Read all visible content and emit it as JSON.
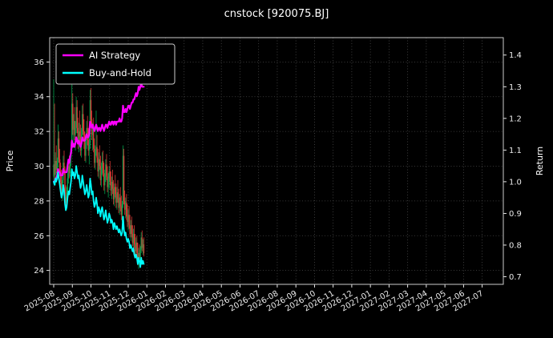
{
  "chart_data": {
    "type": "candlestick+line",
    "title": "cnstock [920075.BJ]",
    "ylabel_left": "Price",
    "ylabel_right": "Return",
    "x_tick_labels": [
      "2025-08",
      "2025-09",
      "2025-10",
      "2025-11",
      "2025-12",
      "2026-01",
      "2026-02",
      "2026-03",
      "2026-04",
      "2026-05",
      "2026-06",
      "2026-07",
      "2026-08",
      "2026-09",
      "2026-10",
      "2026-11",
      "2026-12",
      "2027-01",
      "2027-02",
      "2027-03",
      "2027-04",
      "2027-05",
      "2027-06",
      "2027-07"
    ],
    "x_tick_rotation_deg": 30,
    "left_axis": {
      "label": "Price",
      "ticks": [
        24,
        26,
        28,
        30,
        32,
        34,
        36
      ],
      "range": [
        23.2,
        37.4
      ]
    },
    "right_axis": {
      "label": "Return",
      "ticks": [
        0.7,
        0.8,
        0.9,
        1.0,
        1.1,
        1.2,
        1.3,
        1.4
      ],
      "range": [
        0.676,
        1.455
      ]
    },
    "grid": "dotted",
    "data_start_month": "2025-08",
    "data_end_month": "2026-01",
    "trading_days_per_month": 21.5,
    "legend": {
      "position": "upper-left",
      "items": [
        {
          "label": "AI Strategy",
          "color": "#ff00ff"
        },
        {
          "label": "Buy-and-Hold",
          "color": "#00ffff"
        }
      ]
    },
    "colors": {
      "background": "#000000",
      "text": "#ffffff",
      "grid": "#4a4a4a",
      "spine": "#cccccc",
      "candle_up": "#00a14b",
      "candle_down": "#d93a35"
    },
    "candles_ohlc": [
      [
        29.4,
        35.0,
        29.0,
        30.1
      ],
      [
        30.1,
        33.6,
        29.3,
        29.5
      ],
      [
        29.5,
        30.8,
        28.9,
        30.3
      ],
      [
        30.3,
        31.2,
        29.6,
        29.8
      ],
      [
        29.8,
        30.5,
        29.2,
        30.2
      ],
      [
        30.2,
        32.4,
        29.9,
        31.6
      ],
      [
        31.6,
        32.0,
        30.2,
        30.4
      ],
      [
        30.4,
        31.0,
        29.4,
        29.6
      ],
      [
        29.6,
        30.2,
        28.8,
        29.1
      ],
      [
        29.1,
        29.8,
        28.3,
        28.6
      ],
      [
        28.6,
        29.4,
        28.0,
        29.2
      ],
      [
        29.2,
        30.6,
        29.0,
        30.2
      ],
      [
        30.2,
        30.9,
        29.5,
        29.8
      ],
      [
        29.8,
        30.0,
        27.9,
        28.2
      ],
      [
        28.2,
        28.9,
        27.6,
        27.9
      ],
      [
        27.9,
        28.8,
        27.5,
        28.5
      ],
      [
        28.5,
        29.6,
        28.2,
        29.3
      ],
      [
        29.3,
        30.4,
        29.0,
        30.0
      ],
      [
        30.0,
        30.6,
        29.3,
        29.6
      ],
      [
        29.6,
        30.8,
        29.4,
        30.5
      ],
      [
        30.5,
        31.4,
        30.0,
        31.0
      ],
      [
        31.0,
        34.7,
        30.8,
        33.6
      ],
      [
        33.6,
        34.2,
        31.8,
        32.1
      ],
      [
        32.1,
        33.0,
        31.2,
        32.6
      ],
      [
        32.6,
        33.4,
        31.5,
        31.8
      ],
      [
        31.8,
        32.6,
        30.9,
        32.2
      ],
      [
        32.2,
        34.0,
        31.9,
        33.4
      ],
      [
        33.4,
        33.8,
        31.9,
        32.2
      ],
      [
        32.2,
        32.8,
        31.0,
        31.3
      ],
      [
        31.3,
        32.5,
        30.8,
        32.0
      ],
      [
        32.0,
        33.2,
        31.4,
        31.7
      ],
      [
        31.7,
        32.4,
        30.6,
        30.9
      ],
      [
        30.9,
        32.2,
        30.5,
        31.8
      ],
      [
        31.8,
        33.5,
        31.5,
        33.0
      ],
      [
        33.0,
        33.6,
        31.8,
        32.0
      ],
      [
        32.0,
        32.7,
        31.0,
        31.4
      ],
      [
        31.4,
        32.0,
        30.3,
        30.6
      ],
      [
        30.6,
        31.8,
        30.2,
        31.5
      ],
      [
        31.5,
        32.6,
        31.0,
        32.2
      ],
      [
        32.2,
        32.9,
        31.2,
        31.5
      ],
      [
        31.5,
        32.2,
        30.6,
        30.9
      ],
      [
        30.9,
        31.6,
        30.1,
        31.2
      ],
      [
        31.2,
        34.4,
        31.0,
        33.8
      ],
      [
        33.8,
        34.5,
        32.4,
        32.7
      ],
      [
        32.7,
        33.2,
        31.5,
        31.8
      ],
      [
        31.8,
        32.5,
        30.9,
        32.1
      ],
      [
        32.1,
        32.8,
        30.8,
        31.0
      ],
      [
        31.0,
        31.6,
        29.9,
        30.2
      ],
      [
        30.2,
        31.2,
        29.8,
        30.9
      ],
      [
        30.9,
        33.2,
        30.6,
        31.1
      ],
      [
        31.1,
        31.8,
        30.2,
        30.5
      ],
      [
        30.5,
        31.0,
        29.4,
        29.7
      ],
      [
        29.7,
        30.8,
        29.3,
        30.4
      ],
      [
        30.4,
        31.2,
        29.8,
        30.0
      ],
      [
        30.0,
        30.6,
        28.9,
        29.2
      ],
      [
        29.2,
        30.2,
        28.8,
        29.9
      ],
      [
        29.9,
        30.8,
        29.5,
        30.3
      ],
      [
        30.3,
        30.9,
        29.4,
        29.6
      ],
      [
        29.6,
        30.2,
        28.6,
        28.9
      ],
      [
        28.9,
        29.8,
        28.4,
        29.5
      ],
      [
        29.5,
        30.4,
        29.1,
        30.1
      ],
      [
        30.1,
        30.7,
        29.2,
        29.4
      ],
      [
        29.4,
        30.0,
        28.5,
        28.8
      ],
      [
        28.8,
        29.6,
        28.2,
        29.3
      ],
      [
        29.3,
        30.0,
        28.7,
        29.7
      ],
      [
        29.7,
        30.3,
        28.9,
        29.1
      ],
      [
        29.1,
        29.7,
        28.3,
        28.6
      ],
      [
        28.6,
        29.4,
        28.1,
        29.1
      ],
      [
        29.1,
        29.8,
        28.4,
        28.7
      ],
      [
        28.7,
        29.2,
        27.8,
        28.1
      ],
      [
        28.1,
        29.0,
        27.7,
        28.8
      ],
      [
        28.8,
        29.5,
        28.2,
        28.4
      ],
      [
        28.4,
        29.0,
        27.6,
        27.9
      ],
      [
        27.9,
        28.8,
        27.5,
        28.5
      ],
      [
        28.5,
        29.2,
        27.9,
        28.1
      ],
      [
        28.1,
        28.7,
        27.3,
        27.6
      ],
      [
        27.6,
        28.4,
        27.2,
        28.2
      ],
      [
        28.2,
        28.8,
        27.4,
        27.7
      ],
      [
        27.7,
        28.3,
        26.9,
        27.2
      ],
      [
        27.2,
        28.0,
        26.8,
        27.8
      ],
      [
        27.8,
        31.2,
        27.6,
        30.6
      ],
      [
        30.6,
        31.0,
        27.8,
        28.0
      ],
      [
        28.0,
        28.6,
        27.2,
        27.5
      ],
      [
        27.5,
        28.2,
        27.0,
        27.9
      ],
      [
        27.9,
        28.4,
        26.9,
        27.1
      ],
      [
        27.1,
        27.8,
        26.5,
        26.8
      ],
      [
        26.8,
        27.5,
        26.3,
        27.2
      ],
      [
        27.2,
        27.7,
        26.4,
        26.6
      ],
      [
        26.6,
        27.2,
        25.9,
        26.1
      ],
      [
        26.1,
        26.9,
        25.7,
        26.6
      ],
      [
        26.6,
        27.1,
        25.9,
        26.1
      ],
      [
        26.1,
        26.6,
        25.4,
        25.6
      ],
      [
        25.6,
        26.4,
        25.2,
        26.1
      ],
      [
        26.1,
        26.6,
        25.3,
        25.5
      ],
      [
        25.5,
        26.1,
        24.9,
        25.1
      ],
      [
        25.1,
        25.9,
        24.7,
        25.6
      ],
      [
        25.6,
        26.0,
        24.8,
        25.0
      ],
      [
        25.0,
        25.6,
        24.3,
        24.5
      ],
      [
        24.5,
        25.3,
        24.1,
        25.0
      ],
      [
        25.0,
        25.5,
        24.4,
        24.7
      ],
      [
        24.7,
        25.4,
        24.2,
        25.2
      ],
      [
        25.2,
        26.2,
        25.0,
        25.9
      ],
      [
        25.9,
        26.3,
        25.1,
        25.3
      ],
      [
        25.3,
        25.8,
        24.9,
        25.5
      ],
      [
        25.5,
        25.9,
        24.8,
        25.0
      ]
    ],
    "series": [
      {
        "name": "AI Strategy",
        "color": "#ff00ff",
        "axis": "right",
        "values": [
          1.0,
          1.0,
          1.01,
          1.01,
          1.02,
          1.04,
          1.03,
          1.03,
          1.02,
          1.02,
          1.02,
          1.04,
          1.03,
          1.03,
          1.03,
          1.03,
          1.05,
          1.07,
          1.06,
          1.08,
          1.09,
          1.13,
          1.11,
          1.12,
          1.11,
          1.12,
          1.14,
          1.13,
          1.12,
          1.13,
          1.12,
          1.11,
          1.12,
          1.14,
          1.13,
          1.13,
          1.13,
          1.14,
          1.15,
          1.14,
          1.14,
          1.15,
          1.19,
          1.18,
          1.17,
          1.18,
          1.17,
          1.16,
          1.17,
          1.18,
          1.17,
          1.16,
          1.17,
          1.17,
          1.16,
          1.17,
          1.18,
          1.17,
          1.16,
          1.17,
          1.18,
          1.18,
          1.17,
          1.18,
          1.19,
          1.18,
          1.18,
          1.19,
          1.19,
          1.18,
          1.19,
          1.19,
          1.18,
          1.19,
          1.19,
          1.19,
          1.2,
          1.19,
          1.19,
          1.2,
          1.24,
          1.22,
          1.22,
          1.23,
          1.22,
          1.23,
          1.24,
          1.24,
          1.23,
          1.24,
          1.25,
          1.25,
          1.26,
          1.26,
          1.27,
          1.28,
          1.27,
          1.28,
          1.3,
          1.29,
          1.3,
          1.31,
          1.3,
          1.3,
          1.3
        ]
      },
      {
        "name": "Buy-and-Hold",
        "color": "#00ffff",
        "axis": "right",
        "values": [
          1.0,
          0.99,
          1.01,
          1.0,
          1.01,
          1.03,
          1.01,
          0.99,
          0.97,
          0.95,
          0.96,
          0.99,
          0.97,
          0.93,
          0.91,
          0.92,
          0.95,
          0.97,
          0.96,
          0.98,
          1.0,
          1.04,
          1.02,
          1.03,
          1.01,
          1.02,
          1.05,
          1.03,
          1.01,
          1.02,
          1.0,
          0.98,
          0.99,
          1.02,
          1.0,
          0.98,
          0.96,
          0.97,
          0.99,
          0.97,
          0.95,
          0.96,
          1.01,
          0.99,
          0.96,
          0.97,
          0.94,
          0.92,
          0.93,
          0.95,
          0.93,
          0.9,
          0.92,
          0.91,
          0.89,
          0.91,
          0.92,
          0.9,
          0.88,
          0.89,
          0.91,
          0.89,
          0.87,
          0.88,
          0.9,
          0.89,
          0.87,
          0.88,
          0.87,
          0.85,
          0.87,
          0.86,
          0.85,
          0.86,
          0.85,
          0.84,
          0.85,
          0.84,
          0.83,
          0.84,
          0.89,
          0.85,
          0.83,
          0.84,
          0.82,
          0.81,
          0.82,
          0.81,
          0.79,
          0.8,
          0.79,
          0.78,
          0.79,
          0.77,
          0.76,
          0.77,
          0.76,
          0.74,
          0.76,
          0.75,
          0.73,
          0.76,
          0.74,
          0.75,
          0.74
        ]
      }
    ]
  }
}
